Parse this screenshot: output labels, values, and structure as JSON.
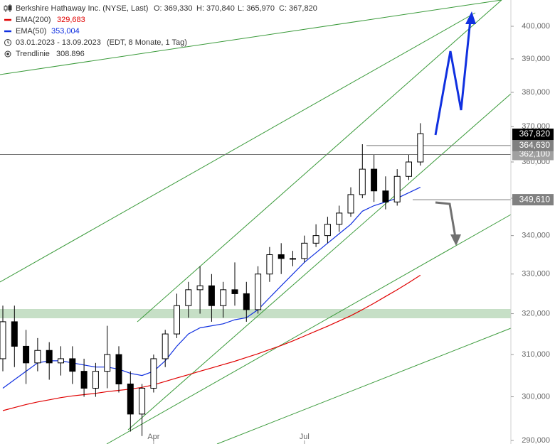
{
  "chart_data": {
    "type": "candlestick",
    "title": "Berkshire Hathaway Inc. (NYSE, Last)",
    "ohlc_labels": [
      "O: 369,330",
      "H: 370,840",
      "L: 365,970",
      "C: 367,820"
    ],
    "period": "03.01.2023 - 13.09.2023",
    "period_note": "(EDT, 8 Monate, 1 Tag)",
    "trendline": {
      "name": "Trendlinie",
      "label": "308.896"
    },
    "categories": [
      null,
      null,
      null,
      null,
      null,
      null,
      null,
      null,
      null,
      null,
      null,
      null,
      null,
      "Apr",
      null,
      null,
      null,
      null,
      null,
      null,
      null,
      null,
      null,
      null,
      null,
      null,
      "Jul",
      null,
      null,
      null,
      null,
      null,
      null,
      null,
      null,
      null,
      null
    ],
    "open": [
      309000,
      318000,
      312000,
      308000,
      311000,
      308000,
      309000,
      306000,
      302000,
      306000,
      310000,
      303000,
      296000,
      302000,
      309000,
      315000,
      322000,
      326000,
      327000,
      322000,
      326000,
      325000,
      321000,
      330000,
      335000,
      334000,
      334000,
      338000,
      340000,
      343000,
      346000,
      351000,
      358000,
      352000,
      349000,
      356000,
      360000
    ],
    "high": [
      322000,
      322000,
      316000,
      314000,
      313000,
      312000,
      312000,
      309000,
      308000,
      317000,
      312000,
      306000,
      303000,
      310000,
      316000,
      325000,
      328000,
      332000,
      330000,
      328000,
      333000,
      328000,
      332000,
      337000,
      338000,
      336000,
      340000,
      343000,
      345000,
      348000,
      353000,
      365000,
      362000,
      356000,
      358000,
      362000,
      371000
    ],
    "low": [
      306000,
      307000,
      303000,
      306000,
      304000,
      305000,
      303000,
      300000,
      300000,
      302000,
      301000,
      292000,
      291000,
      301000,
      307000,
      314000,
      319000,
      320000,
      318000,
      319000,
      322000,
      318000,
      320000,
      328000,
      330000,
      332000,
      333000,
      337000,
      338000,
      341000,
      345000,
      350000,
      349000,
      347000,
      348000,
      355000,
      359000
    ],
    "close": [
      318000,
      312000,
      308000,
      311000,
      308000,
      309000,
      306000,
      302000,
      306000,
      310000,
      303000,
      296000,
      302000,
      309000,
      315000,
      322000,
      326000,
      327000,
      322000,
      326000,
      325000,
      321000,
      330000,
      335000,
      334000,
      334000,
      338000,
      340000,
      343000,
      346000,
      351000,
      358000,
      352000,
      349000,
      356000,
      360000,
      368000
    ],
    "up_color": "#ffffff",
    "down_color": "#000000",
    "lines": [
      {
        "name": "EMA(200)",
        "value_label": "329,683",
        "color": "#e00000",
        "values": [
          296800,
          297500,
          298200,
          298800,
          299300,
          299800,
          300200,
          300500,
          300800,
          301200,
          301500,
          301800,
          302200,
          302800,
          303600,
          304400,
          305200,
          306000,
          306800,
          307600,
          308400,
          309300,
          310200,
          311200,
          312200,
          313300,
          314500,
          315700,
          316900,
          318200,
          319500,
          321000,
          322600,
          324300,
          326000,
          327800,
          329700
        ]
      },
      {
        "name": "EMA(50)",
        "value_label": "353,004",
        "color": "#1030e0",
        "values": [
          302000,
          304000,
          306000,
          308000,
          308500,
          308500,
          308000,
          307500,
          307000,
          307000,
          306500,
          305500,
          305000,
          306000,
          308500,
          312000,
          315000,
          316500,
          317000,
          317500,
          318500,
          319000,
          321000,
          324000,
          327000,
          330000,
          333000,
          335500,
          338000,
          340500,
          343000,
          346500,
          348000,
          349000,
          350000,
          351500,
          353000
        ]
      }
    ],
    "log_scale": true,
    "ylim": [
      289200,
      408250
    ],
    "yticks": [
      {
        "value": 290000,
        "label": "290,000"
      },
      {
        "value": 300000,
        "label": "300,000"
      },
      {
        "value": 310000,
        "label": "310,000"
      },
      {
        "value": 320000,
        "label": "320,000"
      },
      {
        "value": 330000,
        "label": "330,000"
      },
      {
        "value": 340000,
        "label": "340,000"
      },
      {
        "value": 350000,
        "label": "350,000"
      },
      {
        "value": 360000,
        "label": "360,000"
      },
      {
        "value": 370000,
        "label": "370,000"
      },
      {
        "value": 380000,
        "label": "380,000"
      },
      {
        "value": 390000,
        "label": "390,000"
      },
      {
        "value": 400000,
        "label": "400,000"
      }
    ],
    "price_marks": [
      {
        "value": 362100,
        "label": "362,100",
        "color": "#a0a0a0"
      },
      {
        "value": 349610,
        "label": "349,610",
        "color": "#808080"
      },
      {
        "value": 364630,
        "label": "364,630",
        "color": "#808080"
      },
      {
        "value": 367820,
        "label": "367,820",
        "color": "#000000"
      }
    ]
  }
}
